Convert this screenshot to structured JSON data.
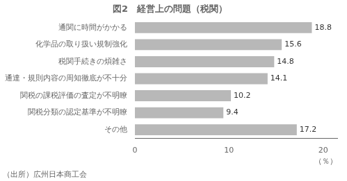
{
  "chart_data": {
    "type": "bar",
    "orientation": "horizontal",
    "title": "図2　経営上の問題（税関）",
    "categories": [
      "その他",
      "関税分類の認定基準が不明瞭",
      "関税の課税評価の査定が不明瞭",
      "通達・規則内容の周知徹底が不十分",
      "税関手続きの煩雑さ",
      "化学品の取り扱い規制強化",
      "通関に時間がかかる"
    ],
    "values": [
      17.2,
      9.4,
      10.2,
      14.1,
      14.8,
      15.6,
      18.8
    ],
    "color": "#b8b8b8",
    "xlim": [
      0,
      21.5
    ],
    "xticks": [
      0,
      10,
      20
    ],
    "xlabel": "（％）",
    "source": "（出所）広州日本商工会",
    "data_labels": true,
    "grid": false
  }
}
